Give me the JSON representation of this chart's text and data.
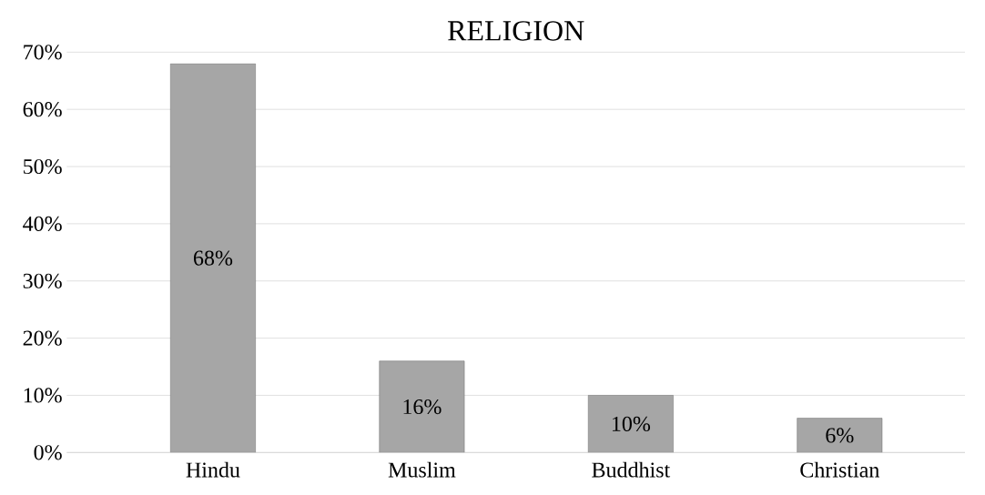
{
  "chart_data": {
    "type": "bar",
    "title": "RELIGION",
    "categories": [
      "Hindu",
      "Muslim",
      "Buddhist",
      "Christian"
    ],
    "values": [
      68,
      16,
      10,
      6
    ],
    "value_labels": [
      "68%",
      "16%",
      "10%",
      "6%"
    ],
    "color": "#a6a6a6",
    "ylim": [
      0,
      70
    ],
    "yticks": [
      {
        "value": 0,
        "label": "0%"
      },
      {
        "value": 10,
        "label": "10%"
      },
      {
        "value": 20,
        "label": "20%"
      },
      {
        "value": 30,
        "label": "30%"
      },
      {
        "value": 40,
        "label": "40%"
      },
      {
        "value": 50,
        "label": "50%"
      },
      {
        "value": 60,
        "label": "60%"
      },
      {
        "value": 70,
        "label": "70%"
      }
    ],
    "grid": "y"
  }
}
